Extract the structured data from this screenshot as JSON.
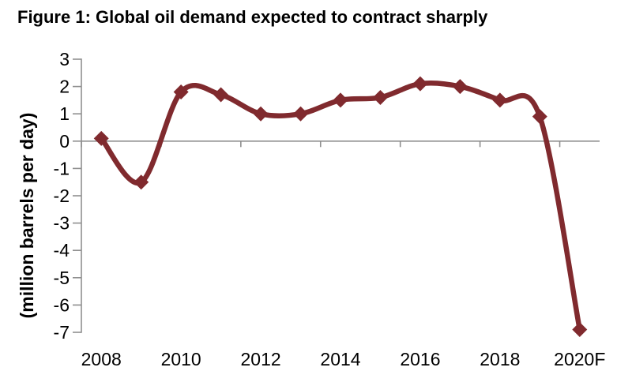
{
  "title": "Figure 1: Global oil demand expected to contract sharply",
  "chart_data": {
    "type": "line",
    "title": "Figure 1: Global oil demand expected to contract sharply",
    "categories": [
      "2008",
      "2009",
      "2010",
      "2011",
      "2012",
      "2013",
      "2014",
      "2015",
      "2016",
      "2017",
      "2018",
      "2019",
      "2020F"
    ],
    "values": [
      0.1,
      -1.5,
      1.8,
      1.7,
      1.0,
      1.0,
      1.5,
      1.6,
      2.1,
      2.0,
      1.5,
      0.9,
      -6.9
    ],
    "x_tick_labels": [
      "2008",
      "2010",
      "2012",
      "2014",
      "2016",
      "2018",
      "2020F"
    ],
    "xlabel": "",
    "ylabel": "(million barrels per day)",
    "ylim": [
      -7,
      3
    ],
    "y_ticks": [
      3,
      2,
      1,
      0,
      -1,
      -2,
      -3,
      -4,
      -5,
      -6,
      -7
    ],
    "grid": "off",
    "legend": "none",
    "smoothed": true,
    "marker": "diamond",
    "line_color": "#802A2E",
    "marker_color": "#802A2E",
    "axis_color": "#8F8F8F",
    "text_color": "#000000",
    "background_color": "#FFFFFF"
  }
}
